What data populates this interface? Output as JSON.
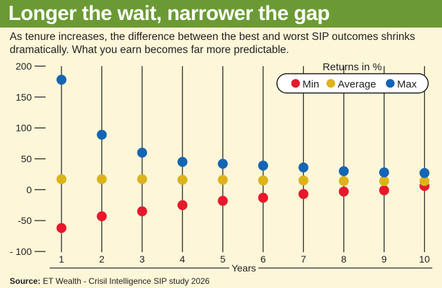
{
  "header": {
    "title": "Longer the wait, narrower the gap",
    "subtitle": "As tenure increases, the difference between the best and worst SIP outcomes shrinks dramatically. What you earn becomes far more predictable."
  },
  "footer": {
    "source_label": "Source:",
    "source_text": "ET Wealth - Crisil Intelligence SIP study 2026"
  },
  "colors": {
    "title_bar": "#6b9a34",
    "background": "#fdf6d9",
    "min": "#e8182c",
    "average": "#dcb419",
    "max": "#1565b5"
  },
  "chart_data": {
    "type": "scatter",
    "title": "Longer the wait, narrower the gap",
    "xlabel": "Years",
    "ylabel": "",
    "legend_title": "Returns in %",
    "legend_position": "top-right",
    "x": [
      1,
      2,
      3,
      4,
      5,
      6,
      7,
      8,
      9,
      10
    ],
    "xticks": [
      "1",
      "2",
      "3",
      "4",
      "5",
      "6",
      "7",
      "8",
      "9",
      "10"
    ],
    "ylim": [
      -100,
      200
    ],
    "yticks": [
      -100,
      -50,
      0,
      50,
      100,
      150,
      200
    ],
    "ytick_labels": [
      "- 100",
      "-50",
      "0",
      "50",
      "100",
      "150",
      "200"
    ],
    "grid": "vertical",
    "series": [
      {
        "name": "Min",
        "color": "#e8182c",
        "values": [
          -62,
          -43,
          -35,
          -25,
          -18,
          -13,
          -7,
          -3,
          -1,
          6
        ]
      },
      {
        "name": "Average",
        "color": "#dcb419",
        "values": [
          17,
          17,
          17,
          16,
          16,
          15,
          15,
          14,
          14,
          14
        ]
      },
      {
        "name": "Max",
        "color": "#1565b5",
        "values": [
          178,
          89,
          60,
          45,
          42,
          39,
          36,
          30,
          28,
          27
        ]
      }
    ]
  }
}
